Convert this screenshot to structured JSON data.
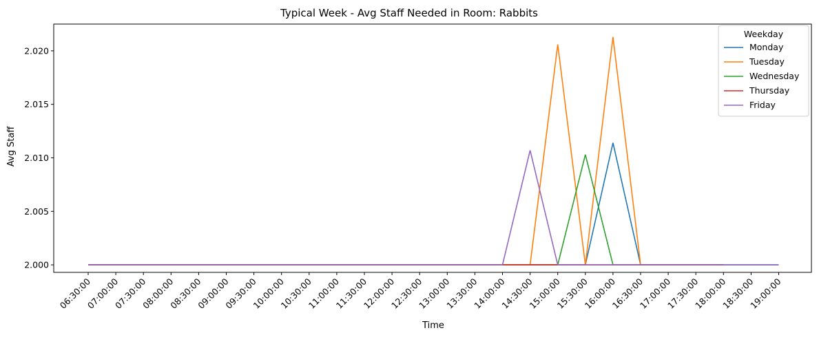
{
  "chart_data": {
    "type": "line",
    "title": "Typical Week - Avg Staff Needed in Room: Rabbits",
    "xlabel": "Time",
    "ylabel": "Avg Staff",
    "ylim": [
      1.9993,
      2.0225
    ],
    "yticks": [
      "2.000",
      "2.005",
      "2.010",
      "2.015",
      "2.020"
    ],
    "ytick_values": [
      2.0,
      2.005,
      2.01,
      2.015,
      2.02
    ],
    "categories": [
      "06:30:00",
      "07:00:00",
      "07:30:00",
      "08:00:00",
      "08:30:00",
      "09:00:00",
      "09:30:00",
      "10:00:00",
      "10:30:00",
      "11:00:00",
      "11:30:00",
      "12:00:00",
      "12:30:00",
      "13:00:00",
      "13:30:00",
      "14:00:00",
      "14:30:00",
      "15:00:00",
      "15:30:00",
      "16:00:00",
      "16:30:00",
      "17:00:00",
      "17:30:00",
      "18:00:00",
      "18:30:00",
      "19:00:00"
    ],
    "grid": false,
    "legend": {
      "title": "Weekday",
      "placement": "top-right"
    },
    "series": [
      {
        "name": "Monday",
        "color": "#1f77b4",
        "values": [
          2.0,
          2.0,
          2.0,
          2.0,
          2.0,
          2.0,
          2.0,
          2.0,
          2.0,
          2.0,
          2.0,
          2.0,
          2.0,
          2.0,
          2.0,
          2.0,
          2.0,
          2.0,
          2.0,
          2.0114,
          2.0,
          2.0,
          2.0,
          2.0,
          2.0,
          2.0
        ]
      },
      {
        "name": "Tuesday",
        "color": "#ff7f0e",
        "values": [
          2.0,
          2.0,
          2.0,
          2.0,
          2.0,
          2.0,
          2.0,
          2.0,
          2.0,
          2.0,
          2.0,
          2.0,
          2.0,
          2.0,
          2.0,
          2.0,
          2.0,
          2.0206,
          2.0,
          2.0213,
          2.0,
          2.0,
          2.0,
          2.0,
          null,
          null
        ]
      },
      {
        "name": "Wednesday",
        "color": "#2ca02c",
        "values": [
          2.0,
          2.0,
          2.0,
          2.0,
          2.0,
          2.0,
          2.0,
          2.0,
          2.0,
          2.0,
          2.0,
          2.0,
          2.0,
          2.0,
          2.0,
          2.0,
          2.0,
          2.0,
          2.0103,
          2.0,
          2.0,
          2.0,
          2.0,
          2.0,
          null,
          null
        ]
      },
      {
        "name": "Thursday",
        "color": "#d62728",
        "values": [
          2.0,
          2.0,
          2.0,
          2.0,
          2.0,
          2.0,
          2.0,
          2.0,
          2.0,
          2.0,
          2.0,
          2.0,
          2.0,
          2.0,
          2.0,
          2.0,
          2.0,
          2.0,
          2.0,
          2.0,
          2.0,
          2.0,
          2.0,
          2.0,
          null,
          null
        ]
      },
      {
        "name": "Friday",
        "color": "#9467bd",
        "values": [
          2.0,
          2.0,
          2.0,
          2.0,
          2.0,
          2.0,
          2.0,
          2.0,
          2.0,
          2.0,
          2.0,
          2.0,
          2.0,
          2.0,
          2.0,
          2.0,
          2.0107,
          2.0,
          2.0,
          2.0,
          2.0,
          2.0,
          2.0,
          2.0,
          2.0,
          2.0
        ]
      }
    ]
  }
}
